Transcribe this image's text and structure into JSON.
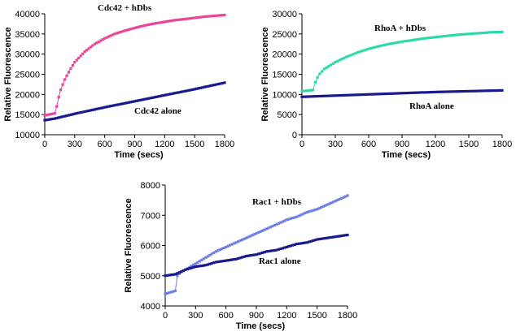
{
  "chart_data": [
    {
      "type": "line",
      "xlabel": "Time (secs)",
      "ylabel": "Relative Fluorescence",
      "xlim": [
        0,
        1800
      ],
      "ylim": [
        10000,
        40000
      ],
      "xticks": [
        0,
        300,
        600,
        900,
        1200,
        1500,
        1800
      ],
      "yticks": [
        10000,
        15000,
        20000,
        25000,
        30000,
        35000,
        40000
      ],
      "grid": false,
      "series": [
        {
          "name": "Cdc42 + hDbs",
          "color": "#e8469b",
          "points": [
            [
              0,
              14800
            ],
            [
              100,
              15300
            ],
            [
              120,
              17000
            ],
            [
              150,
              20500
            ],
            [
              200,
              23700
            ],
            [
              250,
              26000
            ],
            [
              300,
              28000
            ],
            [
              400,
              30600
            ],
            [
              500,
              32500
            ],
            [
              600,
              33900
            ],
            [
              700,
              35000
            ],
            [
              800,
              35800
            ],
            [
              900,
              36500
            ],
            [
              1000,
              37100
            ],
            [
              1100,
              37600
            ],
            [
              1200,
              38000
            ],
            [
              1300,
              38400
            ],
            [
              1400,
              38700
            ],
            [
              1500,
              39000
            ],
            [
              1600,
              39300
            ],
            [
              1700,
              39500
            ],
            [
              1800,
              39700
            ]
          ]
        },
        {
          "name": "Cdc42 alone",
          "color": "#1a1a8c",
          "points": [
            [
              0,
              13600
            ],
            [
              100,
              14000
            ],
            [
              300,
              15200
            ],
            [
              600,
              16800
            ],
            [
              900,
              18300
            ],
            [
              1200,
              19800
            ],
            [
              1500,
              21300
            ],
            [
              1800,
              22900
            ]
          ]
        }
      ]
    },
    {
      "type": "line",
      "xlabel": "Time (secs)",
      "ylabel": "Relative Fluorescence",
      "xlim": [
        0,
        1800
      ],
      "ylim": [
        0,
        30000
      ],
      "xticks": [
        0,
        300,
        600,
        900,
        1200,
        1500,
        1800
      ],
      "yticks": [
        0,
        5000,
        10000,
        15000,
        20000,
        25000,
        30000
      ],
      "grid": false,
      "series": [
        {
          "name": "RhoA + hDbs",
          "color": "#2fd8a8",
          "points": [
            [
              0,
              10800
            ],
            [
              100,
              11100
            ],
            [
              120,
              13000
            ],
            [
              150,
              14800
            ],
            [
              200,
              16300
            ],
            [
              300,
              18000
            ],
            [
              400,
              19300
            ],
            [
              500,
              20400
            ],
            [
              600,
              21300
            ],
            [
              700,
              22000
            ],
            [
              800,
              22600
            ],
            [
              900,
              23100
            ],
            [
              1000,
              23500
            ],
            [
              1100,
              23900
            ],
            [
              1200,
              24200
            ],
            [
              1300,
              24500
            ],
            [
              1400,
              24800
            ],
            [
              1500,
              25000
            ],
            [
              1600,
              25200
            ],
            [
              1700,
              25400
            ],
            [
              1800,
              25500
            ]
          ]
        },
        {
          "name": "RhoA alone",
          "color": "#1a1a8c",
          "points": [
            [
              0,
              9400
            ],
            [
              300,
              9700
            ],
            [
              600,
              10000
            ],
            [
              900,
              10300
            ],
            [
              1200,
              10600
            ],
            [
              1500,
              10800
            ],
            [
              1800,
              11000
            ]
          ]
        }
      ]
    },
    {
      "type": "line",
      "xlabel": "Time (secs)",
      "ylabel": "Relative Fluorescence",
      "xlim": [
        0,
        1800
      ],
      "ylim": [
        4000,
        8000
      ],
      "xticks": [
        0,
        300,
        600,
        900,
        1200,
        1500,
        1800
      ],
      "yticks": [
        4000,
        5000,
        6000,
        7000,
        8000
      ],
      "grid": false,
      "series": [
        {
          "name": "Rac1 + hDbs",
          "color": "#6f7fe6",
          "points": [
            [
              0,
              4400
            ],
            [
              100,
              4500
            ],
            [
              120,
              5000
            ],
            [
              150,
              5100
            ],
            [
              200,
              5200
            ],
            [
              300,
              5400
            ],
            [
              400,
              5600
            ],
            [
              500,
              5800
            ],
            [
              600,
              5950
            ],
            [
              700,
              6100
            ],
            [
              800,
              6250
            ],
            [
              900,
              6400
            ],
            [
              1000,
              6550
            ],
            [
              1100,
              6700
            ],
            [
              1200,
              6850
            ],
            [
              1300,
              6950
            ],
            [
              1400,
              7100
            ],
            [
              1500,
              7200
            ],
            [
              1600,
              7350
            ],
            [
              1700,
              7500
            ],
            [
              1800,
              7650
            ]
          ]
        },
        {
          "name": "Rac1 alone",
          "color": "#1a1a8c",
          "points": [
            [
              0,
              5000
            ],
            [
              100,
              5050
            ],
            [
              200,
              5200
            ],
            [
              300,
              5300
            ],
            [
              400,
              5350
            ],
            [
              500,
              5450
            ],
            [
              600,
              5500
            ],
            [
              700,
              5550
            ],
            [
              800,
              5650
            ],
            [
              900,
              5700
            ],
            [
              1000,
              5800
            ],
            [
              1100,
              5850
            ],
            [
              1200,
              5950
            ],
            [
              1300,
              6050
            ],
            [
              1400,
              6100
            ],
            [
              1500,
              6200
            ],
            [
              1600,
              6250
            ],
            [
              1700,
              6300
            ],
            [
              1800,
              6350
            ]
          ]
        }
      ]
    }
  ]
}
